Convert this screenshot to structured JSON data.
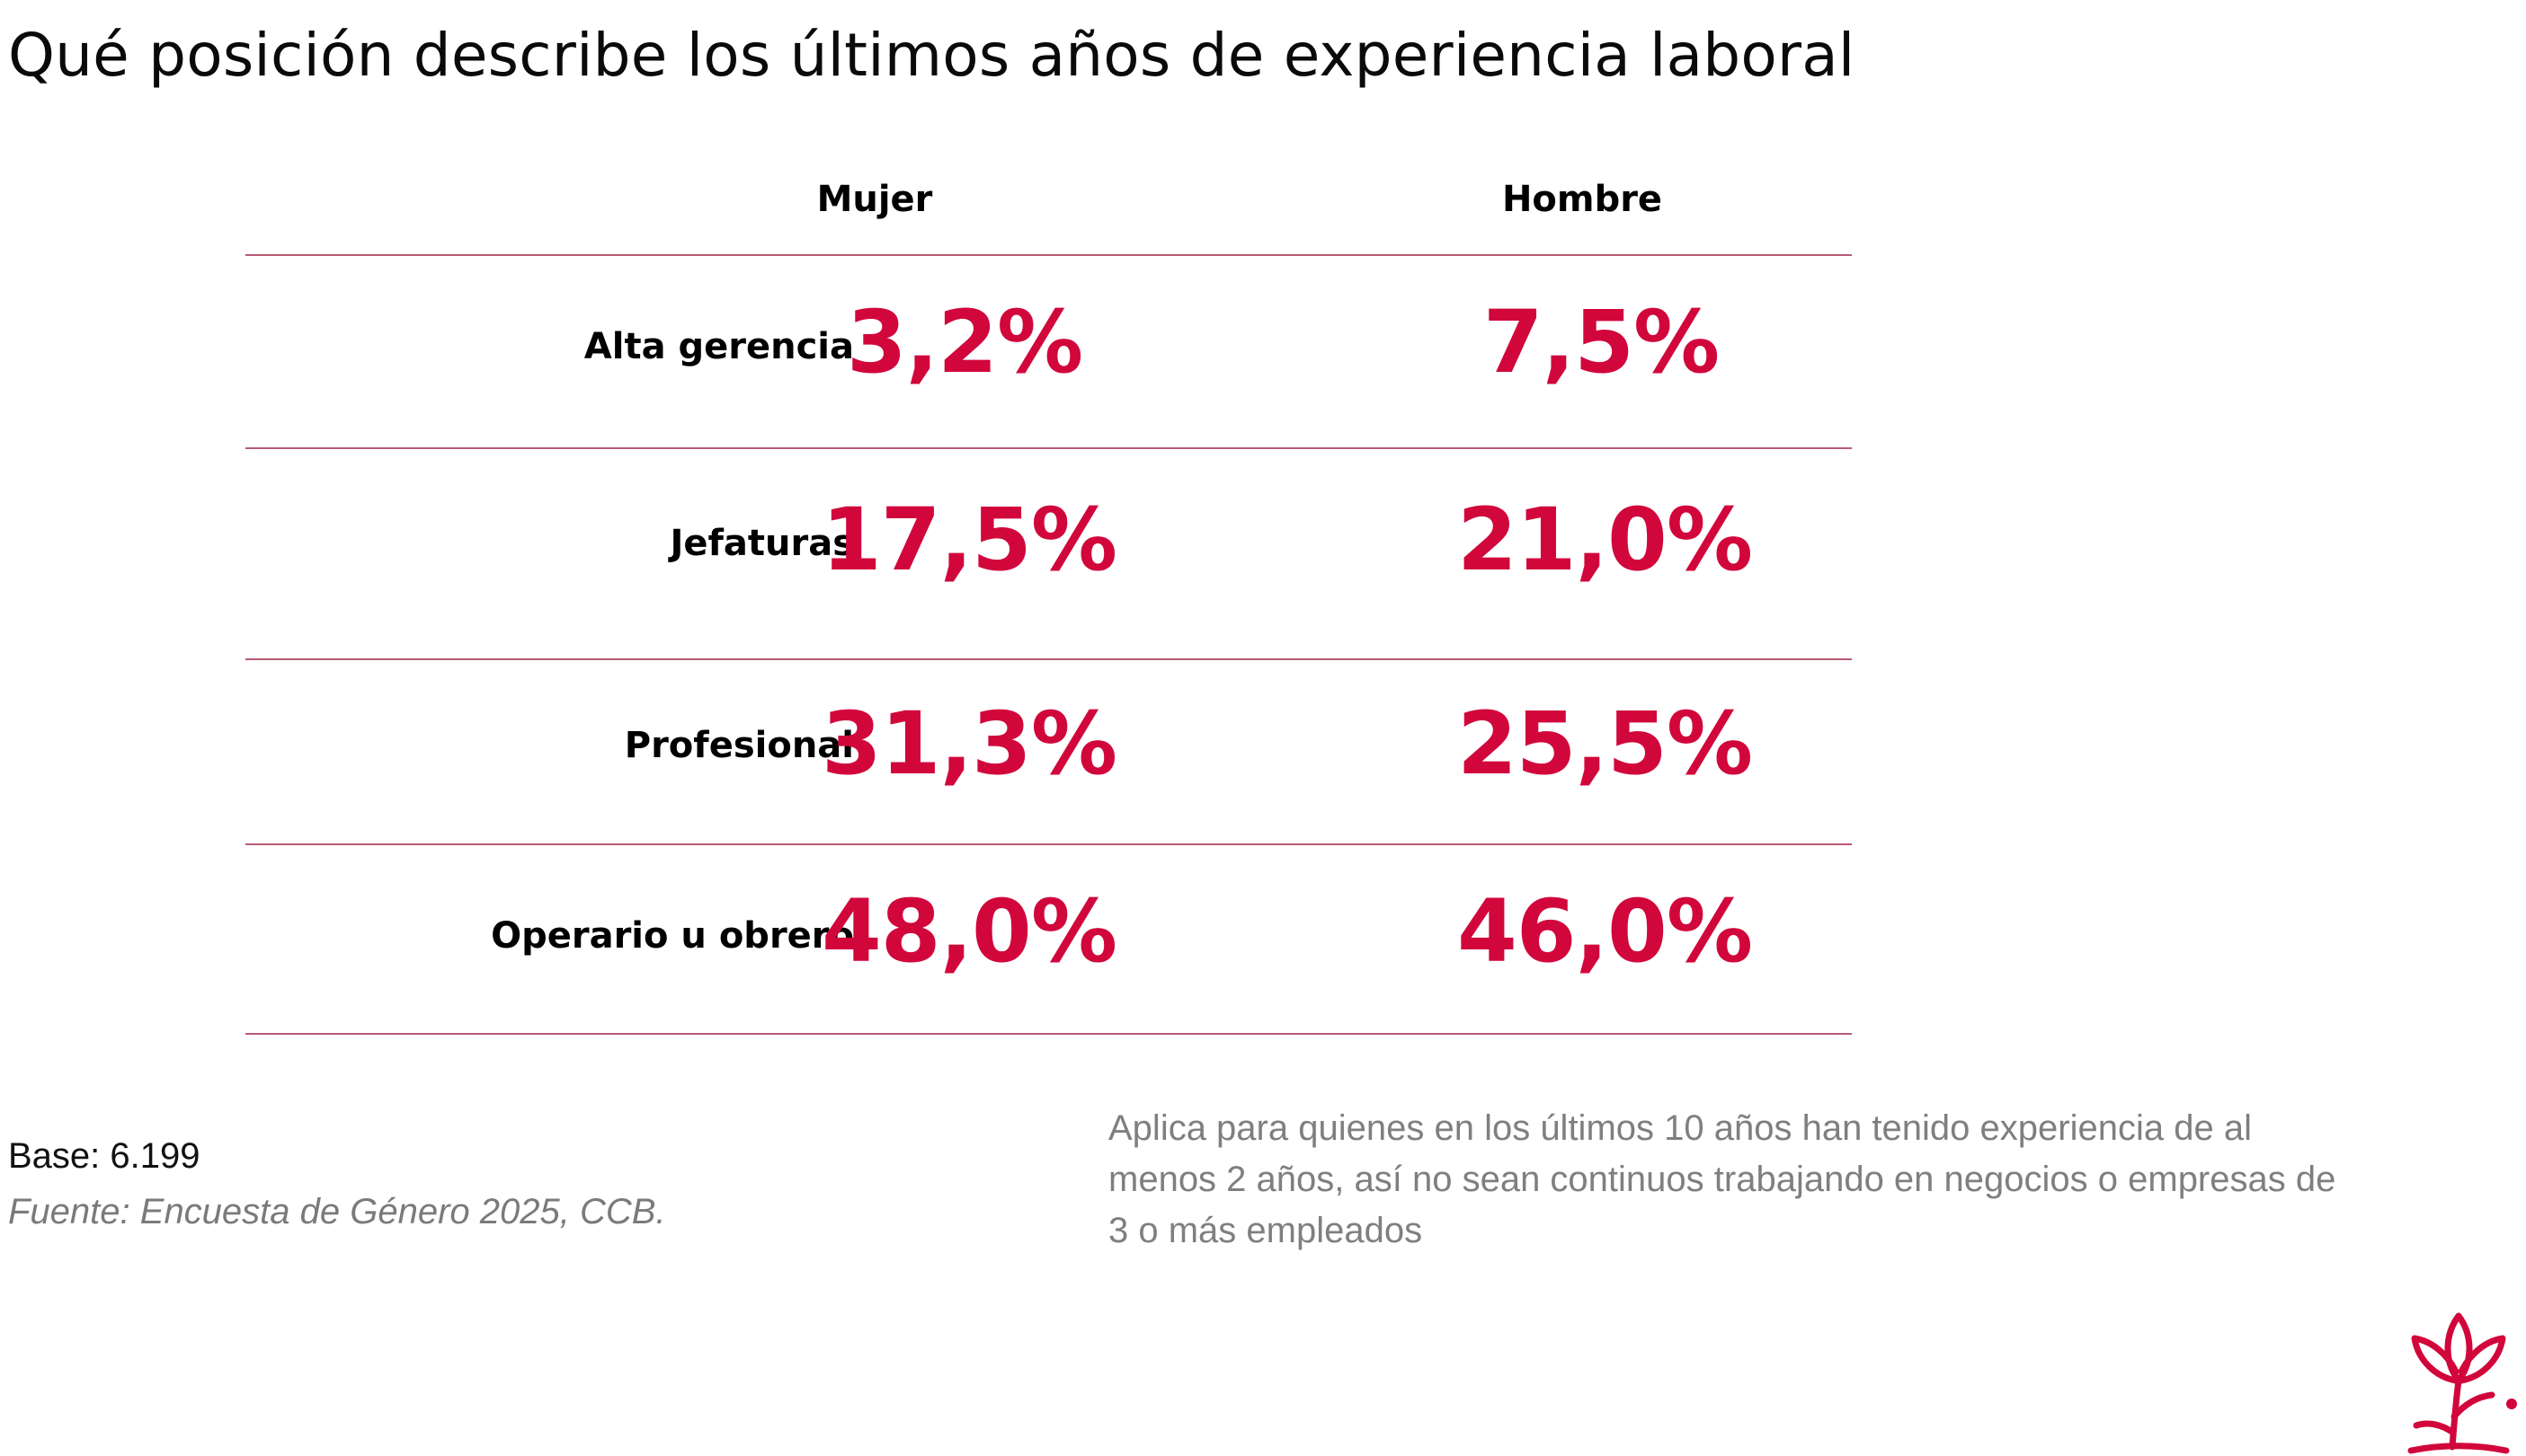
{
  "title": "Qué posición describe los últimos años de experiencia laboral",
  "chart_data": {
    "type": "table",
    "title": "Qué posición describe los últimos años de experiencia laboral",
    "columns": [
      "Mujer",
      "Hombre"
    ],
    "rows": [
      {
        "label": "Alta gerencia",
        "mujer": "3,2%",
        "hombre": "7,5%"
      },
      {
        "label": "Jefaturas",
        "mujer": "17,5%",
        "hombre": "21,0%"
      },
      {
        "label": "Profesional",
        "mujer": "31,3%",
        "hombre": "25,5%"
      },
      {
        "label": "Operario u obrero",
        "mujer": "48,0%",
        "hombre": "46,0%"
      }
    ],
    "series": [
      {
        "name": "Mujer",
        "values": [
          3.2,
          17.5,
          31.3,
          48.0
        ]
      },
      {
        "name": "Hombre",
        "values": [
          7.5,
          21.0,
          25.5,
          46.0
        ]
      }
    ],
    "unit": "%"
  },
  "footer": {
    "base": "Base: 6.199",
    "source": "Fuente: Encuesta de Género 2025, CCB.",
    "note": "Aplica para quienes en los últimos 10 años han tenido experiencia de al menos 2 años, así no sean continuos trabajando en negocios o empresas de 3 o más empleados"
  },
  "colors": {
    "accent": "#d1073c",
    "rule": "#b85a73",
    "muted_text": "#7f7f7f"
  },
  "icons": {
    "logo": "tulip-flower-logo"
  }
}
